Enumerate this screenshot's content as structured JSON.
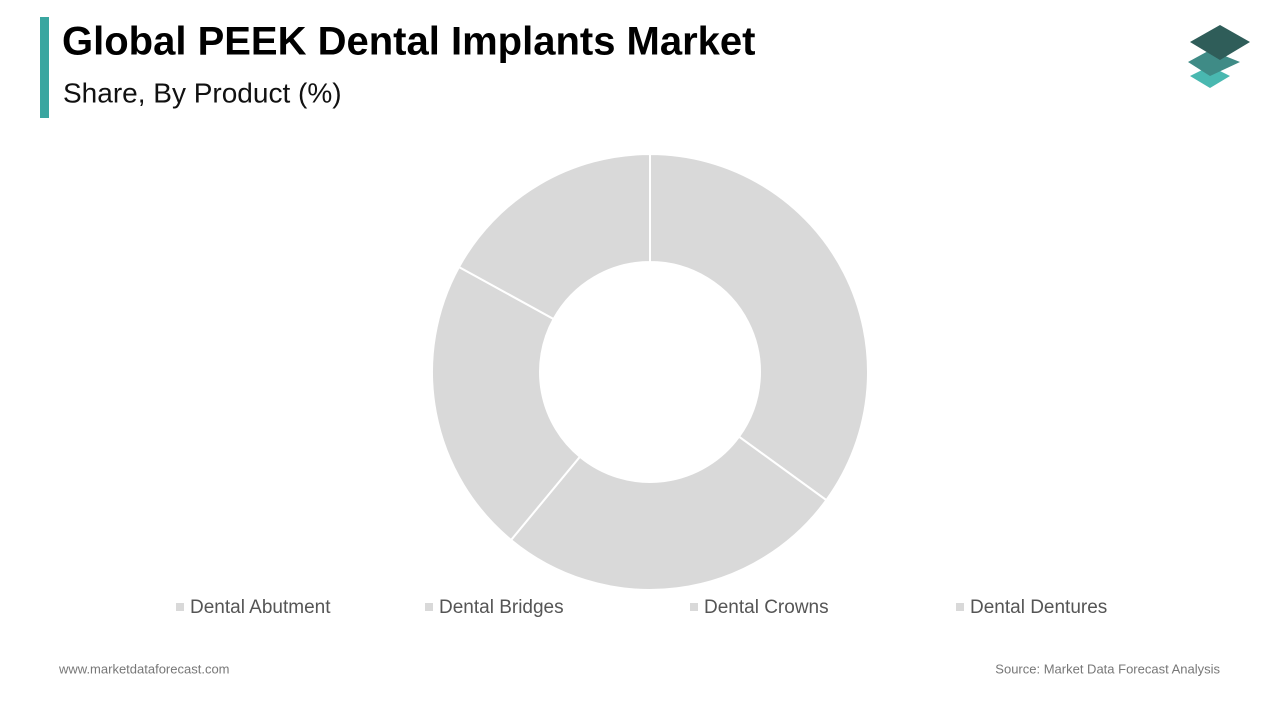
{
  "chart_data": {
    "type": "donut",
    "title": "Global PEEK Dental Implants Market",
    "subtitle": "Share, By Product (%)",
    "categories": [
      "Dental Abutment",
      "Dental Bridges",
      "Dental Crowns",
      "Dental Dentures"
    ],
    "values": [
      35,
      26,
      22,
      17
    ],
    "colors": [
      "#d9d9d9",
      "#d9d9d9",
      "#d9d9d9",
      "#d9d9d9"
    ],
    "legend": "bottom",
    "footer_left": "www.marketdataforecast.com",
    "footer_right": "Source: Market Data Forecast Analysis"
  }
}
